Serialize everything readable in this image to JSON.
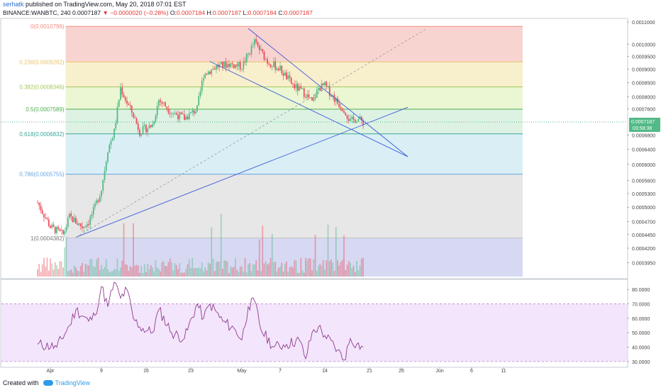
{
  "header": {
    "author": "serhatk",
    "published": "published on TradingView.com, May 20, 2018 07:01 EST",
    "symbol": "BINANCE:WANBTC, 240",
    "price": "0.0007187",
    "change_arrow": "▼",
    "change": "−0.0000020 (−0.28%)",
    "ohlc": {
      "o_label": "O:",
      "o": "0.0007184",
      "h_label": "H:",
      "h": "0.0007187",
      "l_label": "L:",
      "l": "0.0007184",
      "c_label": "C:",
      "c": "0.0007187"
    }
  },
  "footer": {
    "created_with": "Created with",
    "brand": "TradingView"
  },
  "colors": {
    "up": "#53b987",
    "down": "#eb4d5c",
    "rsi_line": "#8e3b8f",
    "rsi_band": "#f3e5fb",
    "trendline": "#3b5bdb"
  },
  "chart_data": [
    {
      "type": "candlestick",
      "title": "",
      "ylim": [
        0.00037,
        0.00111
      ],
      "y_axis": {
        "scale": "log",
        "tick_labels": [
          "0.0011000",
          "0.0010000",
          "0.0009500",
          "0.0009000",
          "0.0008500",
          "0.0008000",
          "0.0007600",
          "0.0007187",
          "0.0006800",
          "0.0006400",
          "0.0006000",
          "0.0005600",
          "0.0005300",
          "0.0005000",
          "0.0004700",
          "0.0004450",
          "0.0004200",
          "0.0003950"
        ]
      },
      "x_axis": {
        "tick_labels": [
          "Apr",
          "9",
          "16",
          "23",
          "May",
          "7",
          "14",
          "21",
          "26",
          "Jun",
          "6",
          "11"
        ]
      },
      "last_price_label": "0.0007187",
      "countdown_label": "03:58:38",
      "fibonacci": [
        {
          "label": "0(0.0010796)",
          "level": 0.0010796,
          "color": "#f28b82"
        },
        {
          "label": "0.236(0.0009282)",
          "level": 0.0009282,
          "color": "#e9c46a"
        },
        {
          "label": "0.382(0.0008346)",
          "level": 0.0008346,
          "color": "#a3c95a"
        },
        {
          "label": "0.5(0.0007589)",
          "level": 0.0007589,
          "color": "#4caf50"
        },
        {
          "label": "0.618(0.0006832)",
          "level": 0.0006832,
          "color": "#3aa59a"
        },
        {
          "label": "0.786(0.0005755)",
          "level": 0.0005755,
          "color": "#64a6e0"
        },
        {
          "label": "1(0.0004382)",
          "level": 0.0004382,
          "color": "#9e9e9e"
        }
      ],
      "price_path_points": [
        [
          "Mar 30",
          0.00051
        ],
        [
          "Apr 1",
          0.00046
        ],
        [
          "Apr 3",
          0.000445
        ],
        [
          "Apr 4",
          0.00048
        ],
        [
          "Apr 6",
          0.00046
        ],
        [
          "Apr 7",
          0.00047
        ],
        [
          "Apr 8",
          0.0005
        ],
        [
          "Apr 9",
          0.00054
        ],
        [
          "Apr 10",
          0.00064
        ],
        [
          "Apr 11",
          0.00069
        ],
        [
          "Apr 12",
          0.00083
        ],
        [
          "Apr 13",
          0.00078
        ],
        [
          "Apr 14",
          0.00074
        ],
        [
          "Apr 15",
          0.00069
        ],
        [
          "Apr 17",
          0.00071
        ],
        [
          "Apr 18",
          0.00079
        ],
        [
          "Apr 20",
          0.00075
        ],
        [
          "Apr 22",
          0.00073
        ],
        [
          "Apr 24",
          0.00076
        ],
        [
          "Apr 25",
          0.00088
        ],
        [
          "Apr 27",
          0.00091
        ],
        [
          "Apr 29",
          0.00092
        ],
        [
          "May 1",
          0.00091
        ],
        [
          "May 3",
          0.00101
        ],
        [
          "May 5",
          0.00093
        ],
        [
          "May 7",
          0.0009
        ],
        [
          "May 9",
          0.00084
        ],
        [
          "May 11",
          0.00081
        ],
        [
          "May 12",
          0.00078
        ],
        [
          "May 13",
          0.00083
        ],
        [
          "May 14",
          0.00084
        ],
        [
          "May 16",
          0.00078
        ],
        [
          "May 17",
          0.00076
        ],
        [
          "May 18",
          0.00072
        ],
        [
          "May 19",
          0.00073
        ],
        [
          "May 20",
          0.0007187
        ]
      ],
      "trendlines": [
        {
          "from": [
            "Apr 5",
            0.00044
          ],
          "to": [
            "May 27",
            0.000765
          ],
          "style": "solid"
        },
        {
          "from": [
            "Apr 5",
            0.00044
          ],
          "to": [
            "May 30",
            0.00107
          ],
          "style": "dashed"
        },
        {
          "from": [
            "Apr 26",
            0.00093
          ],
          "to": [
            "May 27",
            0.00062
          ],
          "style": "solid"
        },
        {
          "from": [
            "May 2",
            0.00107
          ],
          "to": [
            "May 27",
            0.00062
          ],
          "style": "solid"
        }
      ]
    },
    {
      "type": "line",
      "title": "",
      "ylim": [
        27,
        86
      ],
      "y_axis": {
        "tick_labels": [
          "80.0000",
          "70.0000",
          "60.0000",
          "50.0000",
          "40.0000",
          "30.0000"
        ]
      },
      "bands": [
        70,
        30
      ],
      "rsi_points": [
        [
          "Mar 30",
          42
        ],
        [
          "Apr 2",
          40
        ],
        [
          "Apr 4",
          55
        ],
        [
          "Apr 5",
          66
        ],
        [
          "Apr 7",
          58
        ],
        [
          "Apr 8",
          62
        ],
        [
          "Apr 9",
          82
        ],
        [
          "Apr 10",
          68
        ],
        [
          "Apr 11",
          85
        ],
        [
          "Apr 12",
          74
        ],
        [
          "Apr 13",
          80
        ],
        [
          "Apr 14",
          60
        ],
        [
          "Apr 15",
          54
        ],
        [
          "Apr 17",
          50
        ],
        [
          "Apr 18",
          66
        ],
        [
          "Apr 20",
          50
        ],
        [
          "Apr 22",
          46
        ],
        [
          "Apr 24",
          70
        ],
        [
          "Apr 25",
          60
        ],
        [
          "Apr 26",
          70
        ],
        [
          "Apr 28",
          58
        ],
        [
          "Apr 30",
          52
        ],
        [
          "May 1",
          45
        ],
        [
          "May 2",
          68
        ],
        [
          "May 3",
          72
        ],
        [
          "May 4",
          52
        ],
        [
          "May 6",
          40
        ],
        [
          "May 8",
          42
        ],
        [
          "May 10",
          45
        ],
        [
          "May 11",
          32
        ],
        [
          "May 12",
          50
        ],
        [
          "May 13",
          54
        ],
        [
          "May 14",
          48
        ],
        [
          "May 16",
          38
        ],
        [
          "May 17",
          31
        ],
        [
          "May 18",
          46
        ],
        [
          "May 19",
          42
        ],
        [
          "May 20",
          40
        ]
      ]
    }
  ]
}
